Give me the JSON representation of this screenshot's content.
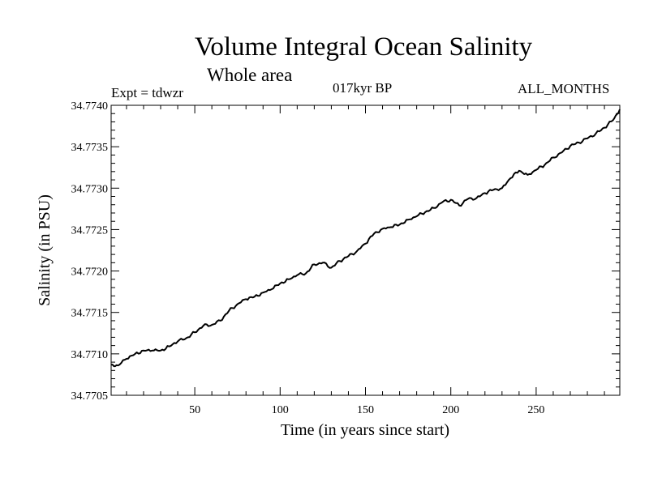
{
  "chart_data": {
    "type": "line",
    "title": "Volume Integral Ocean Salinity",
    "subtitle": "Whole area",
    "experiment": "Expt = tdwzr",
    "period": "017kyr BP",
    "months": "ALL_MONTHS",
    "xlabel": "Time (in years since start)",
    "ylabel": "Salinity (in PSU)",
    "xlim": [
      1,
      299
    ],
    "ylim": [
      34.7705,
      34.774
    ],
    "xticks": [
      50,
      100,
      150,
      200,
      250
    ],
    "yticks": [
      "34.7705",
      "34.7710",
      "34.7715",
      "34.7720",
      "34.7725",
      "34.7730",
      "34.7735",
      "34.7740"
    ],
    "grid": false,
    "series": [
      {
        "color": "#000000",
        "x": [
          1,
          5,
          10,
          15,
          20,
          25,
          30,
          35,
          40,
          45,
          50,
          55,
          60,
          65,
          70,
          75,
          80,
          85,
          90,
          95,
          100,
          105,
          110,
          115,
          120,
          125,
          130,
          135,
          140,
          145,
          150,
          155,
          160,
          165,
          170,
          175,
          180,
          185,
          190,
          195,
          200,
          205,
          210,
          215,
          220,
          225,
          230,
          235,
          240,
          245,
          250,
          255,
          260,
          265,
          270,
          275,
          280,
          285,
          290,
          295,
          299
        ],
        "y": [
          34.77087,
          34.77086,
          34.77094,
          34.771,
          34.77104,
          34.77104,
          34.77104,
          34.77109,
          34.77115,
          34.77119,
          34.77126,
          34.77134,
          34.77135,
          34.7714,
          34.77152,
          34.7716,
          34.77166,
          34.77169,
          34.77174,
          34.77178,
          34.77185,
          34.7719,
          34.77195,
          34.77197,
          34.77208,
          34.7721,
          34.77204,
          34.77212,
          34.77218,
          34.77224,
          34.77233,
          34.77245,
          34.77251,
          34.77253,
          34.77256,
          34.77262,
          34.77266,
          34.77271,
          34.77276,
          34.77283,
          34.77286,
          34.77279,
          34.77287,
          34.77288,
          34.77294,
          34.77298,
          34.773,
          34.77312,
          34.77321,
          34.77316,
          34.77322,
          34.77328,
          34.77337,
          34.77343,
          34.77351,
          34.77355,
          34.7736,
          34.77366,
          34.77373,
          34.77382,
          34.77395
        ]
      }
    ]
  }
}
